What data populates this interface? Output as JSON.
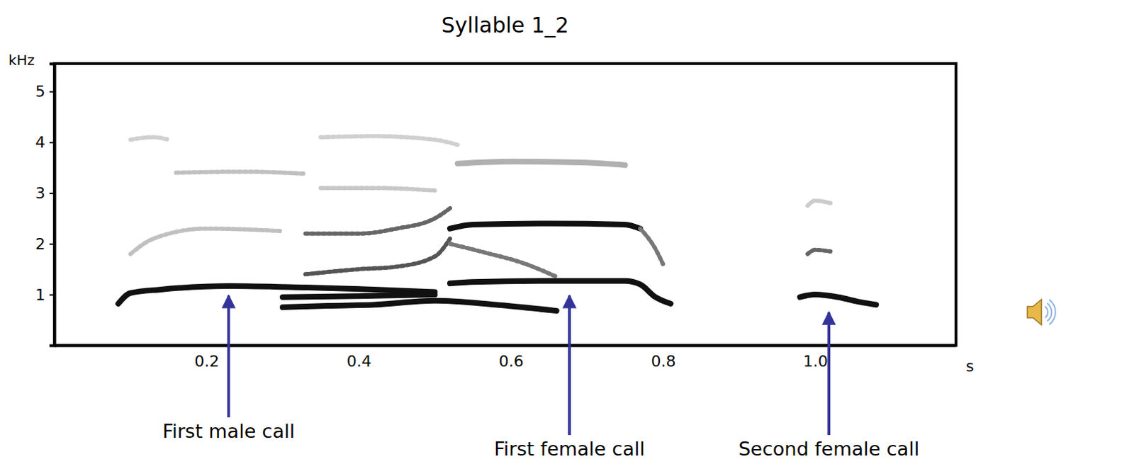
{
  "chart_data": {
    "type": "spectrogram",
    "title": "Syllable 1_2",
    "y_label": "kHz",
    "x_label": "s",
    "xlim": [
      0,
      1.185
    ],
    "ylim": [
      0,
      5.55
    ],
    "xticks": [
      0.2,
      0.4,
      0.6,
      0.8,
      {
        "value": 1,
        "label": "1.0"
      }
    ],
    "yticks": [
      1,
      2,
      3,
      4,
      5
    ],
    "grid": false,
    "series": [
      {
        "color": "#111111",
        "line_style": "solid",
        "x": [
          0.084,
          0.1,
          0.14,
          0.23,
          0.33,
          0.42,
          0.5
        ],
        "values": [
          0.82,
          1.03,
          1.1,
          1.17,
          1.14,
          1.1,
          1.05
        ]
      },
      {
        "color": "#111111",
        "line_style": "solid",
        "x": [
          0.3,
          0.36,
          0.42,
          0.5,
          0.58,
          0.66
        ],
        "values": [
          0.75,
          0.78,
          0.8,
          0.88,
          0.8,
          0.68
        ]
      },
      {
        "color": "#111111",
        "line_style": "solid",
        "x": [
          0.3,
          0.4,
          0.5
        ],
        "values": [
          0.95,
          0.97,
          1.0
        ]
      },
      {
        "color": "#111111",
        "line_style": "solid",
        "x": [
          0.52,
          0.55,
          0.65,
          0.75,
          0.77,
          0.79,
          0.81
        ],
        "values": [
          1.22,
          1.25,
          1.27,
          1.27,
          1.2,
          0.95,
          0.82
        ]
      },
      {
        "color": "#111111",
        "line_style": "solid",
        "x": [
          0.52,
          0.55,
          0.65,
          0.75,
          0.77
        ],
        "values": [
          2.3,
          2.38,
          2.4,
          2.38,
          2.3
        ]
      },
      {
        "color": "#777777",
        "line_style": "dotted",
        "x": [
          0.77,
          0.79,
          0.8
        ],
        "values": [
          2.3,
          1.9,
          1.6
        ]
      },
      {
        "color": "#555555",
        "line_style": "dotted",
        "x": [
          0.33,
          0.4,
          0.45,
          0.5,
          0.52
        ],
        "values": [
          1.4,
          1.5,
          1.55,
          1.75,
          2.1
        ]
      },
      {
        "color": "#777777",
        "line_style": "dotted",
        "x": [
          0.52,
          0.56,
          0.62,
          0.66
        ],
        "values": [
          2.0,
          1.85,
          1.6,
          1.35
        ]
      },
      {
        "color": "#666666",
        "line_style": "dotted",
        "x": [
          0.33,
          0.4,
          0.45,
          0.5,
          0.52
        ],
        "values": [
          2.2,
          2.2,
          2.3,
          2.5,
          2.7
        ]
      },
      {
        "color": "#c0c0c0",
        "line_style": "dotted",
        "x": [
          0.1,
          0.13,
          0.2,
          0.3
        ],
        "values": [
          1.8,
          2.1,
          2.3,
          2.25
        ]
      },
      {
        "color": "#c0c0c0",
        "line_style": "dotted",
        "x": [
          0.16,
          0.25,
          0.33
        ],
        "values": [
          3.4,
          3.42,
          3.38
        ]
      },
      {
        "color": "#c8c8c8",
        "line_style": "dotted",
        "x": [
          0.35,
          0.42,
          0.5
        ],
        "values": [
          3.1,
          3.1,
          3.05
        ]
      },
      {
        "color": "#d0d0d0",
        "line_style": "dotted",
        "x": [
          0.35,
          0.42,
          0.5,
          0.53
        ],
        "values": [
          4.1,
          4.12,
          4.05,
          3.95
        ]
      },
      {
        "color": "#d0d0d0",
        "line_style": "dotted",
        "x": [
          0.1,
          0.13,
          0.15
        ],
        "values": [
          4.05,
          4.1,
          4.05
        ]
      },
      {
        "color": "#b0b0b0",
        "line_style": "solid",
        "x": [
          0.53,
          0.6,
          0.7,
          0.75
        ],
        "values": [
          3.58,
          3.62,
          3.6,
          3.55
        ]
      },
      {
        "color": "#111111",
        "line_style": "solid",
        "x": [
          0.98,
          1.0,
          1.03,
          1.06,
          1.08
        ],
        "values": [
          0.95,
          1.0,
          0.95,
          0.85,
          0.8
        ]
      },
      {
        "color": "#666666",
        "line_style": "dotted",
        "x": [
          0.99,
          1.0,
          1.02
        ],
        "values": [
          1.8,
          1.88,
          1.85
        ]
      },
      {
        "color": "#cccccc",
        "line_style": "dotted",
        "x": [
          0.99,
          1.0,
          1.02
        ],
        "values": [
          2.75,
          2.85,
          2.8
        ]
      }
    ],
    "annotations": [
      {
        "text": "First male call",
        "x": 0.229,
        "y": 0.98
      },
      {
        "text": "First female call",
        "x": 0.677,
        "y": 0.98
      },
      {
        "text": "Second female call",
        "x": 1.018,
        "y": 0.65
      }
    ]
  }
}
